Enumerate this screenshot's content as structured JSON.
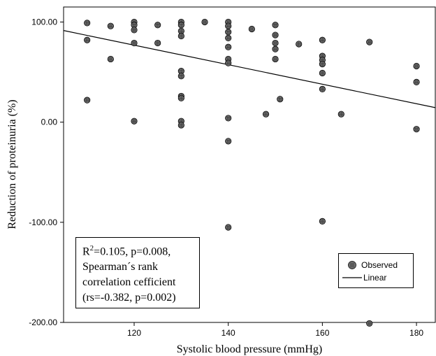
{
  "chart_data": {
    "type": "scatter",
    "xlabel": "Systolic blood pressure (mmHg)",
    "ylabel": "Reduction of proteinuria (%)",
    "xlim": [
      105,
      184
    ],
    "ylim": [
      -200,
      115
    ],
    "x_ticks": [
      {
        "value": 120,
        "label": "120"
      },
      {
        "value": 140,
        "label": "140"
      },
      {
        "value": 160,
        "label": "160"
      },
      {
        "value": 180,
        "label": "180"
      }
    ],
    "y_ticks": [
      {
        "value": 100,
        "label": "100.00"
      },
      {
        "value": 0,
        "label": "0.00"
      },
      {
        "value": -100,
        "label": "-100.00"
      },
      {
        "value": -200,
        "label": "-200.00"
      }
    ],
    "grid": false,
    "series": [
      {
        "name": "Observed",
        "points": [
          [
            110,
            99
          ],
          [
            110,
            82
          ],
          [
            110,
            22
          ],
          [
            115,
            96
          ],
          [
            115,
            63
          ],
          [
            120,
            100
          ],
          [
            120,
            97
          ],
          [
            120,
            92
          ],
          [
            120,
            79
          ],
          [
            120,
            1
          ],
          [
            125,
            97
          ],
          [
            125,
            79
          ],
          [
            130,
            100
          ],
          [
            130,
            97
          ],
          [
            130,
            91
          ],
          [
            130,
            86
          ],
          [
            130,
            51
          ],
          [
            130,
            46
          ],
          [
            130,
            26
          ],
          [
            130,
            24
          ],
          [
            130,
            1
          ],
          [
            130,
            -3
          ],
          [
            135,
            100
          ],
          [
            140,
            100
          ],
          [
            140,
            96
          ],
          [
            140,
            90
          ],
          [
            140,
            84
          ],
          [
            140,
            75
          ],
          [
            140,
            63
          ],
          [
            140,
            59
          ],
          [
            140,
            4
          ],
          [
            140,
            -19
          ],
          [
            140,
            -105
          ],
          [
            145,
            93
          ],
          [
            148,
            8
          ],
          [
            150,
            97
          ],
          [
            150,
            87
          ],
          [
            150,
            79
          ],
          [
            150,
            73
          ],
          [
            150,
            63
          ],
          [
            151,
            23
          ],
          [
            155,
            78
          ],
          [
            160,
            82
          ],
          [
            160,
            66
          ],
          [
            160,
            62
          ],
          [
            160,
            58
          ],
          [
            160,
            49
          ],
          [
            160,
            33
          ],
          [
            160,
            -99
          ],
          [
            164,
            8
          ],
          [
            170,
            80
          ],
          [
            170,
            -201
          ],
          [
            180,
            56
          ],
          [
            180,
            40
          ],
          [
            180,
            -7
          ]
        ]
      },
      {
        "name": "Linear",
        "line": [
          [
            105,
            91.5
          ],
          [
            184,
            14.5
          ]
        ]
      }
    ],
    "annotation": {
      "lines": [
        {
          "prefix": "R",
          "sup": "2",
          "suffix": "=0.105, p=0.008,"
        },
        {
          "text": "Spearman´s  rank"
        },
        {
          "text": "correlation cefficient"
        },
        {
          "text": "(rs=-0.382, p=0.002)"
        }
      ]
    },
    "legend": {
      "position": "bottom-right",
      "items": [
        "Observed",
        "Linear"
      ]
    }
  }
}
